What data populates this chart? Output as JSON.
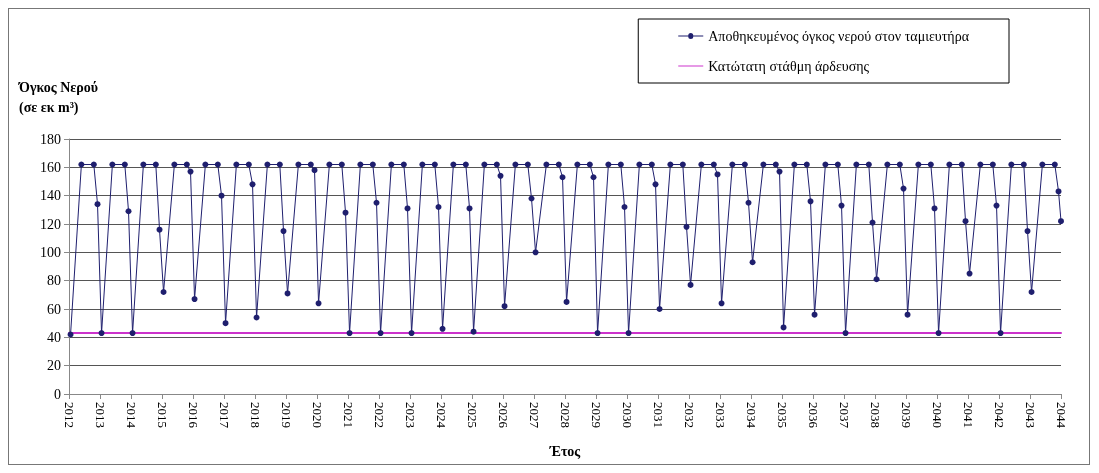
{
  "chart_data": {
    "type": "line",
    "xlabel": "Έτος",
    "ylabel": "Όγκος Νερού\n(σε εκ m³)",
    "xlim": [
      2012,
      2044
    ],
    "xticks": [
      2012,
      2013,
      2014,
      2015,
      2016,
      2017,
      2018,
      2019,
      2020,
      2021,
      2022,
      2023,
      2024,
      2025,
      2026,
      2027,
      2028,
      2029,
      2030,
      2031,
      2032,
      2033,
      2034,
      2035,
      2036,
      2037,
      2038,
      2039,
      2040,
      2041,
      2042,
      2043,
      2044
    ],
    "ylim": [
      0,
      180
    ],
    "yticks": [
      0,
      20,
      40,
      60,
      80,
      100,
      120,
      140,
      160,
      180
    ],
    "grid": "y",
    "legend": "top right",
    "series": [
      {
        "name": "Αποθηκευμένος όγκος νερού στον ταμιευτήρα",
        "color": "#1f1f6e",
        "marker": "circle",
        "x": [
          2012.05,
          2012.4,
          2012.8,
          2012.92,
          2013.05,
          2013.4,
          2013.8,
          2013.92,
          2014.05,
          2014.4,
          2014.8,
          2014.92,
          2015.05,
          2015.4,
          2015.8,
          2015.92,
          2016.05,
          2016.4,
          2016.8,
          2016.92,
          2017.05,
          2017.4,
          2017.8,
          2017.92,
          2018.05,
          2018.4,
          2018.8,
          2018.92,
          2019.05,
          2019.4,
          2019.8,
          2019.92,
          2020.05,
          2020.4,
          2020.8,
          2020.92,
          2021.05,
          2021.4,
          2021.8,
          2021.92,
          2022.05,
          2022.4,
          2022.8,
          2022.92,
          2023.05,
          2023.4,
          2023.8,
          2023.92,
          2024.05,
          2024.4,
          2024.8,
          2024.92,
          2025.05,
          2025.4,
          2025.8,
          2025.92,
          2026.05,
          2026.4,
          2026.8,
          2026.92,
          2027.05,
          2027.4,
          2027.8,
          2027.92,
          2028.05,
          2028.4,
          2028.8,
          2028.92,
          2029.05,
          2029.4,
          2029.8,
          2029.92,
          2030.05,
          2030.4,
          2030.8,
          2030.92,
          2031.05,
          2031.4,
          2031.8,
          2031.92,
          2032.05,
          2032.4,
          2032.8,
          2032.92,
          2033.05,
          2033.4,
          2033.8,
          2033.92,
          2034.05,
          2034.4,
          2034.8,
          2034.92,
          2035.05,
          2035.4,
          2035.8,
          2035.92,
          2036.05,
          2036.4,
          2036.8,
          2036.92,
          2037.05,
          2037.4,
          2037.8,
          2037.92,
          2038.05,
          2038.4,
          2038.8,
          2038.92,
          2039.05,
          2039.4,
          2039.8,
          2039.92,
          2040.05,
          2040.4,
          2040.8,
          2040.92,
          2041.05,
          2041.4,
          2041.8,
          2041.92,
          2042.05,
          2042.4,
          2042.8,
          2042.92,
          2043.05,
          2043.4,
          2043.8,
          2043.92,
          2044
        ],
        "values": [
          42,
          162,
          162,
          134,
          43,
          162,
          162,
          129,
          43,
          162,
          162,
          116,
          72,
          162,
          162,
          157,
          67,
          162,
          162,
          140,
          50,
          162,
          162,
          148,
          54,
          162,
          162,
          115,
          71,
          162,
          162,
          158,
          64,
          162,
          162,
          128,
          43,
          162,
          162,
          135,
          43,
          162,
          162,
          131,
          43,
          162,
          162,
          132,
          46,
          162,
          162,
          131,
          44,
          162,
          162,
          154,
          62,
          162,
          162,
          138,
          100,
          162,
          162,
          153,
          65,
          162,
          162,
          153,
          43,
          162,
          162,
          132,
          43,
          162,
          162,
          148,
          60,
          162,
          162,
          118,
          77,
          162,
          162,
          155,
          64,
          162,
          162,
          135,
          93,
          162,
          162,
          157,
          47,
          162,
          162,
          136,
          56,
          162,
          162,
          133,
          43,
          162,
          162,
          121,
          81,
          162,
          162,
          145,
          56,
          162,
          162,
          131,
          43,
          162,
          162,
          122,
          85,
          162,
          162,
          133,
          43,
          162,
          162,
          115,
          72,
          162,
          162,
          143,
          122
        ]
      },
      {
        "name": "Κατώτατη στάθμη άρδευσης",
        "color": "#cc33cc",
        "marker": "none",
        "x": [
          2012,
          2044
        ],
        "values": [
          43,
          43
        ]
      }
    ]
  }
}
